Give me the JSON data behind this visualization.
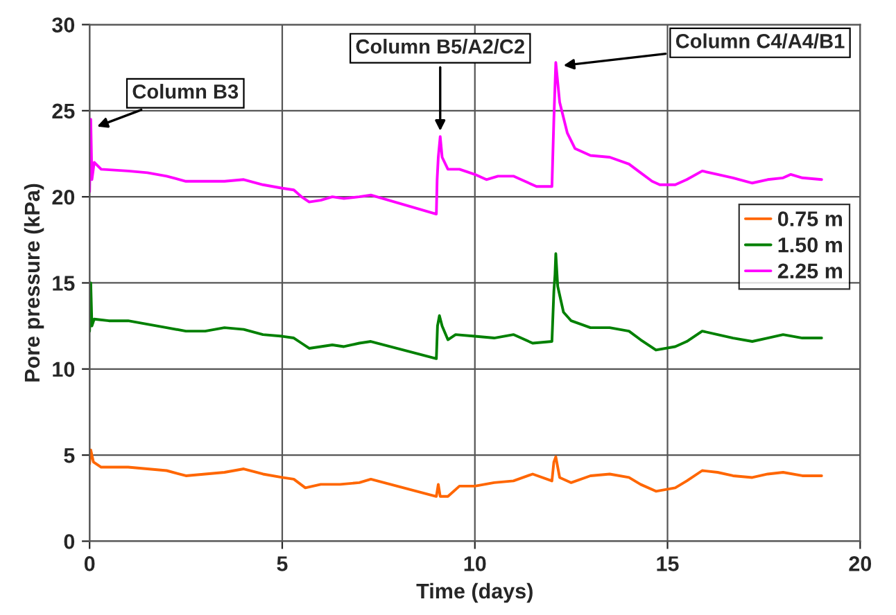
{
  "chart_data": {
    "type": "line",
    "xlabel": "Time (days)",
    "ylabel": "Pore pressure (kPa)",
    "xlim": [
      0,
      20
    ],
    "ylim": [
      0,
      30
    ],
    "xticks": [
      0,
      5,
      10,
      15,
      20
    ],
    "yticks": [
      0,
      5,
      10,
      15,
      20,
      25,
      30
    ],
    "grid": true,
    "legend": "right",
    "marker": "none",
    "line_style": "solid",
    "series": [
      {
        "name": "0.75 m",
        "color": "#ff6600",
        "x": [
          0,
          0.03,
          0.1,
          0.3,
          1,
          1.5,
          2,
          2.5,
          3,
          3.5,
          4,
          4.5,
          5,
          5.3,
          5.6,
          6,
          6.5,
          7,
          7.3,
          9,
          9.05,
          9.1,
          9.3,
          9.6,
          10,
          10.5,
          11,
          11.5,
          12.0,
          12.05,
          12.1,
          12.2,
          12.5,
          13,
          13.5,
          14,
          14.3,
          14.7,
          15.2,
          15.5,
          15.9,
          16.3,
          16.7,
          17.2,
          17.6,
          18,
          18.5,
          19
        ],
        "values": [
          4.5,
          5.3,
          4.6,
          4.3,
          4.3,
          4.2,
          4.1,
          3.8,
          3.9,
          4.0,
          4.2,
          3.9,
          3.7,
          3.6,
          3.1,
          3.3,
          3.3,
          3.4,
          3.6,
          2.6,
          3.3,
          2.6,
          2.6,
          3.2,
          3.2,
          3.4,
          3.5,
          3.9,
          3.5,
          4.6,
          4.9,
          3.7,
          3.4,
          3.8,
          3.9,
          3.7,
          3.3,
          2.9,
          3.1,
          3.5,
          4.1,
          4.0,
          3.8,
          3.7,
          3.9,
          4.0,
          3.8,
          3.8
        ]
      },
      {
        "name": "1.50 m",
        "color": "#008000",
        "x": [
          0,
          0.03,
          0.06,
          0.12,
          0.5,
          1,
          1.5,
          2,
          2.5,
          3,
          3.5,
          4,
          4.5,
          5,
          5.3,
          5.5,
          5.7,
          6,
          6.3,
          6.6,
          7,
          7.3,
          9,
          9.03,
          9.08,
          9.15,
          9.3,
          9.5,
          10,
          10.5,
          11,
          11.5,
          12.0,
          12.05,
          12.08,
          12.1,
          12.15,
          12.3,
          12.5,
          13,
          13.5,
          14,
          14.3,
          14.7,
          15.2,
          15.5,
          15.9,
          16.3,
          16.7,
          17.2,
          17.6,
          18,
          18.5,
          19
        ],
        "values": [
          12.2,
          15.0,
          12.5,
          12.9,
          12.8,
          12.8,
          12.6,
          12.4,
          12.2,
          12.2,
          12.4,
          12.3,
          12.0,
          11.9,
          11.8,
          11.5,
          11.2,
          11.3,
          11.4,
          11.3,
          11.5,
          11.6,
          10.6,
          12.5,
          13.1,
          12.5,
          11.7,
          12.0,
          11.9,
          11.8,
          12.0,
          11.5,
          11.6,
          14.5,
          15.5,
          16.7,
          14.8,
          13.3,
          12.8,
          12.4,
          12.4,
          12.2,
          11.7,
          11.1,
          11.3,
          11.6,
          12.2,
          12.0,
          11.8,
          11.6,
          11.8,
          12.0,
          11.8,
          11.8
        ]
      },
      {
        "name": "2.25 m",
        "color": "#ff00ff",
        "x": [
          0,
          0.03,
          0.06,
          0.12,
          0.3,
          1,
          1.5,
          2,
          2.5,
          3,
          3.5,
          4,
          4.5,
          5,
          5.3,
          5.5,
          5.7,
          6,
          6.3,
          6.6,
          7,
          7.3,
          9.0,
          9.02,
          9.05,
          9.1,
          9.15,
          9.3,
          9.6,
          10,
          10.3,
          10.6,
          11,
          11.3,
          11.6,
          12.0,
          12.05,
          12.1,
          12.2,
          12.4,
          12.6,
          13,
          13.5,
          14,
          14.3,
          14.6,
          14.8,
          15.2,
          15.5,
          15.9,
          16.3,
          16.7,
          17.2,
          17.6,
          18,
          18.2,
          18.5,
          19
        ],
        "values": [
          20.3,
          24.5,
          21.0,
          22.0,
          21.6,
          21.5,
          21.4,
          21.2,
          20.9,
          20.9,
          20.9,
          21.0,
          20.7,
          20.5,
          20.4,
          20.0,
          19.7,
          19.8,
          20.0,
          19.9,
          20.0,
          20.1,
          19.0,
          21.0,
          22.3,
          23.5,
          22.3,
          21.6,
          21.6,
          21.3,
          21.0,
          21.2,
          21.2,
          20.9,
          20.6,
          20.6,
          24.5,
          27.8,
          25.5,
          23.7,
          22.8,
          22.4,
          22.3,
          21.9,
          21.4,
          20.9,
          20.7,
          20.7,
          21.0,
          21.5,
          21.3,
          21.1,
          20.8,
          21.0,
          21.1,
          21.3,
          21.1,
          21.0
        ]
      }
    ],
    "annotations": [
      {
        "text": "Column B3",
        "x": 0.1,
        "y": 24.0
      },
      {
        "text": "Column B5/A2/C2",
        "x": 9.1,
        "y": 23.6
      },
      {
        "text": "Column C4/A4/B1",
        "x": 12.2,
        "y": 27.6
      }
    ]
  }
}
